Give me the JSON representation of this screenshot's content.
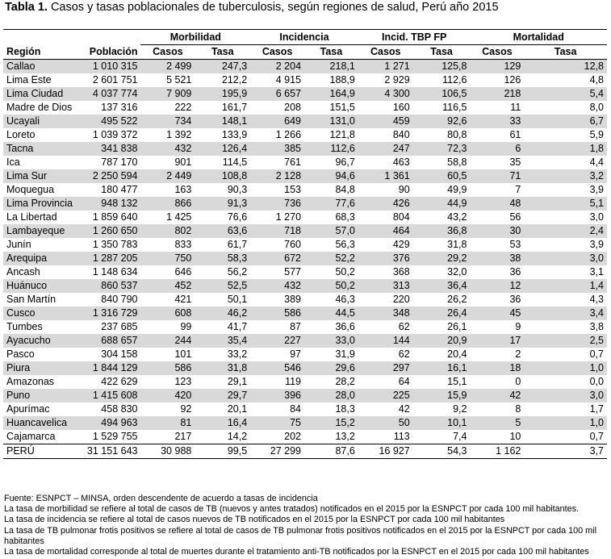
{
  "title": {
    "label": "Tabla 1.",
    "text": "Casos y tasas poblacionales de tuberculosis, según regiones de salud, Perú año 2015"
  },
  "header": {
    "groups": [
      "Morbilidad",
      "Incidencia",
      "Incid. TBP FP",
      "Mortalidad"
    ],
    "region": "Región",
    "poblacion": "Población",
    "casos": "Casos",
    "tasa": "Tasa"
  },
  "rows": [
    [
      "Callao",
      "1 010 315",
      "2 499",
      "247,3",
      "2 204",
      "218,1",
      "1 271",
      "125,8",
      "129",
      "12,8"
    ],
    [
      "Lima Este",
      "2 601 751",
      "5 521",
      "212,2",
      "4 915",
      "188,9",
      "2 929",
      "112,6",
      "126",
      "4,8"
    ],
    [
      "Lima Ciudad",
      "4 037 774",
      "7 909",
      "195,9",
      "6 657",
      "164,9",
      "4 300",
      "106,5",
      "218",
      "5,4"
    ],
    [
      "Madre de Dios",
      "137 316",
      "222",
      "161,7",
      "208",
      "151,5",
      "160",
      "116,5",
      "11",
      "8,0"
    ],
    [
      "Ucayali",
      "495 522",
      "734",
      "148,1",
      "649",
      "131,0",
      "459",
      "92,6",
      "33",
      "6,7"
    ],
    [
      "Loreto",
      "1 039 372",
      "1 392",
      "133,9",
      "1 266",
      "121,8",
      "840",
      "80,8",
      "61",
      "5,9"
    ],
    [
      "Tacna",
      "341 838",
      "432",
      "126,4",
      "385",
      "112,6",
      "247",
      "72,3",
      "6",
      "1,8"
    ],
    [
      "Ica",
      "787 170",
      "901",
      "114,5",
      "761",
      "96,7",
      "463",
      "58,8",
      "35",
      "4,4"
    ],
    [
      "Lima Sur",
      "2 250 594",
      "2 449",
      "108,8",
      "2 128",
      "94,6",
      "1 361",
      "60,5",
      "71",
      "3,2"
    ],
    [
      "Moquegua",
      "180 477",
      "163",
      "90,3",
      "153",
      "84,8",
      "90",
      "49,9",
      "7",
      "3,9"
    ],
    [
      "Lima Provincia",
      "948 132",
      "866",
      "91,3",
      "736",
      "77,6",
      "426",
      "44,9",
      "48",
      "5,1"
    ],
    [
      "La Libertad",
      "1 859 640",
      "1 425",
      "76,6",
      "1 270",
      "68,3",
      "804",
      "43,2",
      "56",
      "3,0"
    ],
    [
      "Lambayeque",
      "1 260 650",
      "802",
      "63,6",
      "718",
      "57,0",
      "464",
      "36,8",
      "30",
      "2,4"
    ],
    [
      "Junín",
      "1 350 783",
      "833",
      "61,7",
      "760",
      "56,3",
      "429",
      "31,8",
      "53",
      "3,9"
    ],
    [
      "Arequipa",
      "1 287 205",
      "750",
      "58,3",
      "672",
      "52,2",
      "376",
      "29,2",
      "38",
      "3,0"
    ],
    [
      "Ancash",
      "1 148 634",
      "646",
      "56,2",
      "577",
      "50,2",
      "368",
      "32,0",
      "36",
      "3,1"
    ],
    [
      "Huánuco",
      "860 537",
      "452",
      "52,5",
      "432",
      "50,2",
      "313",
      "36,4",
      "12",
      "1,4"
    ],
    [
      "San Martín",
      "840 790",
      "421",
      "50,1",
      "389",
      "46,3",
      "220",
      "26,2",
      "36",
      "4,3"
    ],
    [
      "Cusco",
      "1 316 729",
      "608",
      "46,2",
      "586",
      "44,5",
      "348",
      "26,4",
      "45",
      "3,4"
    ],
    [
      "Tumbes",
      "237 685",
      "99",
      "41,7",
      "87",
      "36,6",
      "62",
      "26,1",
      "9",
      "3,8"
    ],
    [
      "Ayacucho",
      "688 657",
      "244",
      "35,4",
      "227",
      "33,0",
      "144",
      "20,9",
      "17",
      "2,5"
    ],
    [
      "Pasco",
      "304 158",
      "101",
      "33,2",
      "97",
      "31,9",
      "62",
      "20,4",
      "2",
      "0,7"
    ],
    [
      "Piura",
      "1 844 129",
      "586",
      "31,8",
      "546",
      "29,6",
      "297",
      "16,1",
      "18",
      "1,0"
    ],
    [
      "Amazonas",
      "422 629",
      "123",
      "29,1",
      "119",
      "28,2",
      "64",
      "15,1",
      "0",
      "0,0"
    ],
    [
      "Puno",
      "1 415 608",
      "420",
      "29,7",
      "396",
      "28,0",
      "225",
      "15,9",
      "42",
      "3,0"
    ],
    [
      "Apurímac",
      "458 830",
      "92",
      "20,1",
      "84",
      "18,3",
      "42",
      "9,2",
      "8",
      "1,7"
    ],
    [
      "Huancavelica",
      "494 963",
      "81",
      "16,4",
      "75",
      "15,2",
      "50",
      "10,1",
      "5",
      "1,0"
    ],
    [
      "Cajamarca",
      "1 529 755",
      "217",
      "14,2",
      "202",
      "13,2",
      "113",
      "7,4",
      "10",
      "0,7"
    ]
  ],
  "total": [
    "PERÚ",
    "31 151 643",
    "30 988",
    "99,5",
    "27 299",
    "87,6",
    "16 927",
    "54,3",
    "1 162",
    "3,7"
  ],
  "notes": [
    "Fuente: ESNPCT – MINSA, orden descendente de acuerdo a tasas de incidencia",
    "La tasa de morbilidad se refiere al total de casos de TB (nuevos y antes tratados) notificados en el 2015 por la ESNPCT por cada 100 mil habitantes.",
    "La tasa de incidencia se refiere al total de casos nuevos de TB notificados en el 2015 por la ESNPCT por cada 100 mil habitantes",
    "La tasa de TB pulmonar frotis positivos se refiere al total de casos de TB pulmonar frotis positivos notificados en el 2015 por la ESNPCT por cada 100 mil habitantes",
    "La tasa de mortalidad corresponde al total de muertes durante el tratamiento anti-TB notificados por la ESNPCT en el 2015 por cada 100 mil habitantes"
  ]
}
